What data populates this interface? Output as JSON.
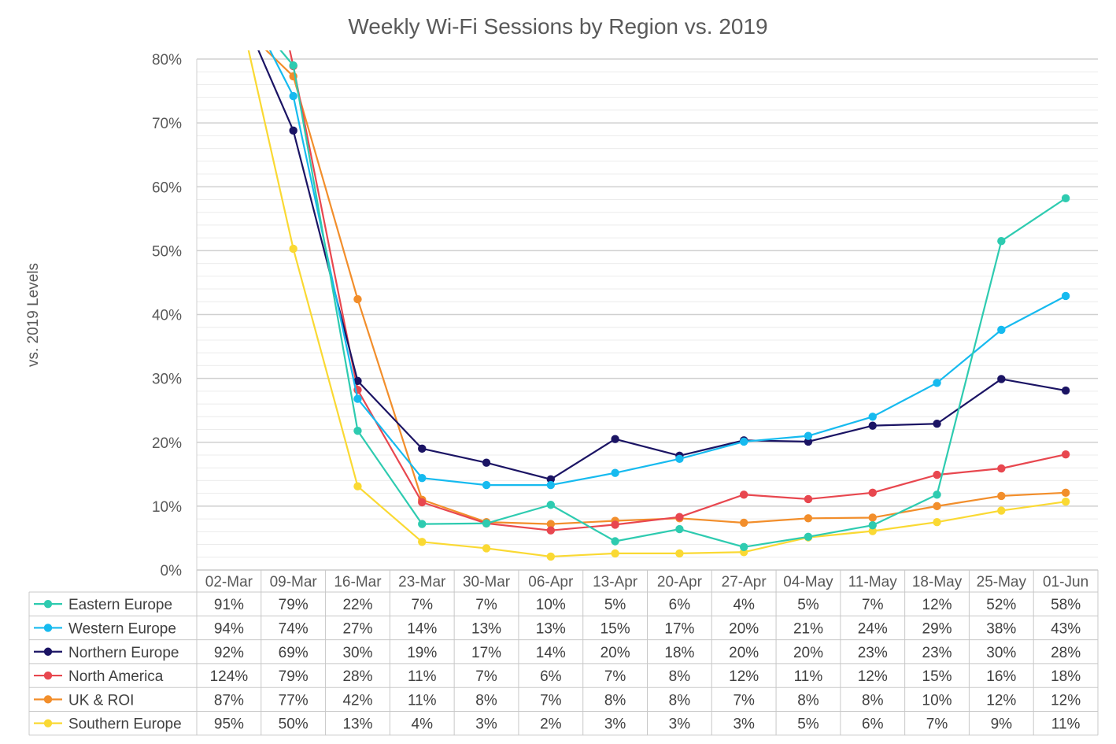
{
  "chart_data": {
    "type": "line",
    "title": "Weekly Wi-Fi Sessions by Region vs. 2019",
    "ylabel": "vs. 2019 Levels",
    "xlabel": "",
    "ylim": [
      0,
      80
    ],
    "y_ticks": [
      "0%",
      "10%",
      "20%",
      "30%",
      "40%",
      "50%",
      "60%",
      "70%",
      "80%"
    ],
    "y_tick_values": [
      0,
      10,
      20,
      30,
      40,
      50,
      60,
      70,
      80
    ],
    "grid": true,
    "legend": "data-table",
    "categories": [
      "02-Mar",
      "09-Mar",
      "16-Mar",
      "23-Mar",
      "30-Mar",
      "06-Apr",
      "13-Apr",
      "20-Apr",
      "27-Apr",
      "04-May",
      "11-May",
      "18-May",
      "25-May",
      "01-Jun"
    ],
    "series": [
      {
        "name": "Eastern Europe",
        "color": "#2ECBB0",
        "values": [
          91,
          79,
          21.8,
          7.2,
          7.3,
          10.2,
          4.5,
          6.4,
          3.6,
          5.2,
          7.0,
          11.8,
          51.5,
          58.2
        ],
        "labels": [
          "91%",
          "79%",
          "22%",
          "7%",
          "7%",
          "10%",
          "5%",
          "6%",
          "4%",
          "5%",
          "7%",
          "12%",
          "52%",
          "58%"
        ]
      },
      {
        "name": "Western Europe",
        "color": "#16BAEF",
        "values": [
          94,
          74.2,
          26.8,
          14.4,
          13.3,
          13.3,
          15.2,
          17.4,
          20.1,
          21.0,
          24.0,
          29.3,
          37.6,
          42.9
        ],
        "labels": [
          "94%",
          "74%",
          "27%",
          "14%",
          "13%",
          "13%",
          "15%",
          "17%",
          "20%",
          "21%",
          "24%",
          "29%",
          "38%",
          "43%"
        ]
      },
      {
        "name": "Northern Europe",
        "color": "#1B1464",
        "values": [
          92,
          68.8,
          29.6,
          19.0,
          16.8,
          14.2,
          20.5,
          17.9,
          20.3,
          20.1,
          22.6,
          22.9,
          29.9,
          28.1
        ],
        "labels": [
          "92%",
          "69%",
          "30%",
          "19%",
          "17%",
          "14%",
          "20%",
          "18%",
          "20%",
          "20%",
          "23%",
          "23%",
          "30%",
          "28%"
        ]
      },
      {
        "name": "North America",
        "color": "#E8474F",
        "values": [
          124,
          78.9,
          28.2,
          10.6,
          7.3,
          6.2,
          7.1,
          8.3,
          11.8,
          11.1,
          12.1,
          14.9,
          15.9,
          18.1
        ],
        "labels": [
          "124%",
          "79%",
          "28%",
          "11%",
          "7%",
          "6%",
          "7%",
          "8%",
          "12%",
          "11%",
          "12%",
          "15%",
          "16%",
          "18%"
        ]
      },
      {
        "name": "UK & ROI",
        "color": "#F28E2B",
        "values": [
          87,
          77.3,
          42.4,
          11.0,
          7.5,
          7.2,
          7.7,
          8.1,
          7.4,
          8.1,
          8.2,
          10.0,
          11.6,
          12.1
        ],
        "labels": [
          "87%",
          "77%",
          "42%",
          "11%",
          "8%",
          "7%",
          "8%",
          "8%",
          "7%",
          "8%",
          "8%",
          "10%",
          "12%",
          "12%"
        ]
      },
      {
        "name": "Southern Europe",
        "color": "#FAD933",
        "values": [
          95,
          50.3,
          13.1,
          4.4,
          3.4,
          2.1,
          2.6,
          2.6,
          2.8,
          5.1,
          6.1,
          7.5,
          9.3,
          10.7
        ],
        "labels": [
          "95%",
          "50%",
          "13%",
          "4%",
          "3%",
          "2%",
          "3%",
          "3%",
          "3%",
          "5%",
          "6%",
          "7%",
          "9%",
          "11%"
        ]
      }
    ]
  }
}
